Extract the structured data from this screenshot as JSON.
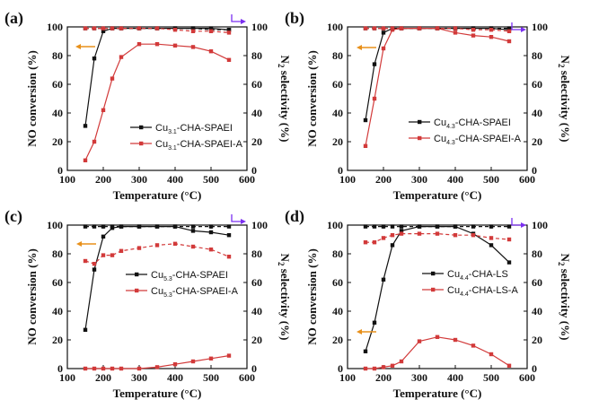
{
  "colors": {
    "black": "#111111",
    "red": "#d23a3a",
    "orange": "#e8901a",
    "purple": "#7b2ff0"
  },
  "chart_data": [
    {
      "panel": "(a)",
      "type": "line",
      "xlabel": "Temperature (°C)",
      "ylabel": "NO conversion (%)",
      "y2label": "N2 selectivity (%)",
      "xlim": [
        100,
        600
      ],
      "ylim": [
        0,
        100
      ],
      "xticks": [
        100,
        200,
        300,
        400,
        500,
        600
      ],
      "yticks": [
        0,
        20,
        40,
        60,
        80,
        100
      ],
      "legend_position": "right",
      "series": [
        {
          "name": "Cu3.1-CHA-SPAEI",
          "axis": "left",
          "color": "#111111",
          "style": "solid",
          "x": [
            150,
            175,
            200,
            225,
            250,
            300,
            350,
            400,
            450,
            500,
            550
          ],
          "y": [
            31,
            78,
            97,
            99,
            99,
            99,
            99,
            99,
            99,
            99,
            98
          ]
        },
        {
          "name": "Cu3.1-CHA-SPAEI-A",
          "axis": "left",
          "color": "#d23a3a",
          "style": "solid",
          "x": [
            150,
            175,
            200,
            225,
            250,
            300,
            350,
            400,
            450,
            500,
            550
          ],
          "y": [
            7,
            20,
            42,
            64,
            79,
            88,
            88,
            87,
            86,
            83,
            77
          ]
        },
        {
          "name": "",
          "axis": "right",
          "color": "#111111",
          "style": "dashed",
          "x": [
            150,
            175,
            200,
            225,
            250,
            300,
            350,
            400,
            450,
            500,
            550
          ],
          "y": [
            99,
            99,
            99,
            99,
            99,
            99,
            99,
            99,
            99,
            98,
            98
          ]
        },
        {
          "name": "",
          "axis": "right",
          "color": "#d23a3a",
          "style": "dashed",
          "x": [
            150,
            175,
            200,
            225,
            250,
            300,
            350,
            400,
            450,
            500,
            550
          ],
          "y": [
            99,
            99,
            99,
            99,
            99,
            99,
            99,
            98,
            97,
            97,
            96
          ]
        }
      ],
      "legend": [
        {
          "base": "Cu",
          "sub": "3.1",
          "suffix": "-CHA-SPAEI",
          "color": "#111111"
        },
        {
          "base": "Cu",
          "sub": "3.1",
          "suffix": "-CHA-SPAEI-A",
          "color": "#d23a3a"
        }
      ]
    },
    {
      "panel": "(b)",
      "type": "line",
      "xlabel": "Temperature (°C)",
      "ylabel": "NO conversion (%)",
      "y2label": "N2 selectivity (%)",
      "xlim": [
        100,
        600
      ],
      "ylim": [
        0,
        100
      ],
      "xticks": [
        100,
        200,
        300,
        400,
        500,
        600
      ],
      "yticks": [
        0,
        20,
        40,
        60,
        80,
        100
      ],
      "legend_position": "bottom-right",
      "series": [
        {
          "name": "Cu4.3-CHA-SPAEI",
          "axis": "left",
          "color": "#111111",
          "style": "solid",
          "x": [
            150,
            175,
            200,
            225,
            250,
            300,
            350,
            400,
            450,
            500,
            550
          ],
          "y": [
            35,
            74,
            96,
            99,
            99,
            99,
            99,
            99,
            99,
            99,
            98
          ]
        },
        {
          "name": "Cu4.3-CHA-SPAEI-A",
          "axis": "left",
          "color": "#d23a3a",
          "style": "solid",
          "x": [
            150,
            175,
            200,
            225,
            250,
            300,
            350,
            400,
            450,
            500,
            550
          ],
          "y": [
            17,
            50,
            85,
            98,
            99,
            99,
            99,
            96,
            94,
            93,
            90
          ]
        },
        {
          "name": "",
          "axis": "right",
          "color": "#111111",
          "style": "dashed",
          "x": [
            150,
            175,
            200,
            225,
            250,
            300,
            350,
            400,
            450,
            500,
            550
          ],
          "y": [
            99,
            99,
            99,
            99,
            99,
            99,
            99,
            99,
            99,
            99,
            99
          ]
        },
        {
          "name": "",
          "axis": "right",
          "color": "#d23a3a",
          "style": "dashed",
          "x": [
            150,
            175,
            200,
            225,
            250,
            300,
            350,
            400,
            450,
            500,
            550
          ],
          "y": [
            99,
            99,
            99,
            99,
            99,
            99,
            99,
            99,
            98,
            98,
            97
          ]
        }
      ],
      "legend": [
        {
          "base": "Cu",
          "sub": "4.3",
          "suffix": "-CHA-SPAEI",
          "color": "#111111"
        },
        {
          "base": "Cu",
          "sub": "4.3",
          "suffix": "-CHA-SPAEI-A",
          "color": "#d23a3a"
        }
      ]
    },
    {
      "panel": "(c)",
      "type": "line",
      "xlabel": "Temperature (°C)",
      "ylabel": "NO conversion (%)",
      "y2label": "N2 selectivity (%)",
      "xlim": [
        100,
        600
      ],
      "ylim": [
        0,
        100
      ],
      "xticks": [
        100,
        200,
        300,
        400,
        500,
        600
      ],
      "yticks": [
        0,
        20,
        40,
        60,
        80,
        100
      ],
      "legend_position": "center",
      "series": [
        {
          "name": "Cu5.3-CHA-SPAEI",
          "axis": "left",
          "color": "#111111",
          "style": "solid",
          "x": [
            150,
            175,
            200,
            225,
            250,
            300,
            350,
            400,
            450,
            500,
            550
          ],
          "y": [
            27,
            69,
            92,
            98,
            99,
            99,
            99,
            99,
            96,
            95,
            93
          ]
        },
        {
          "name": "Cu5.3-CHA-SPAEI-A",
          "axis": "left",
          "color": "#d23a3a",
          "style": "solid",
          "x": [
            150,
            175,
            200,
            225,
            250,
            300,
            350,
            400,
            450,
            500,
            550
          ],
          "y": [
            0,
            0,
            0,
            0,
            0,
            0,
            1,
            3,
            5,
            7,
            9
          ]
        },
        {
          "name": "",
          "axis": "right",
          "color": "#111111",
          "style": "dashed",
          "x": [
            150,
            175,
            200,
            225,
            250,
            300,
            350,
            400,
            450,
            500,
            550
          ],
          "y": [
            99,
            99,
            99,
            99,
            99,
            99,
            99,
            99,
            99,
            99,
            99
          ]
        },
        {
          "name": "",
          "axis": "right",
          "color": "#d23a3a",
          "style": "dashed",
          "x": [
            150,
            175,
            200,
            225,
            250,
            300,
            350,
            400,
            450,
            500,
            550
          ],
          "y": [
            75,
            73,
            79,
            79,
            82,
            84,
            86,
            87,
            85,
            83,
            78
          ]
        }
      ],
      "legend": [
        {
          "base": "Cu",
          "sub": "5.3",
          "suffix": "-CHA-SPAEI",
          "color": "#111111"
        },
        {
          "base": "Cu",
          "sub": "5.3",
          "suffix": "-CHA-SPAEI-A",
          "color": "#d23a3a"
        }
      ]
    },
    {
      "panel": "(d)",
      "type": "line",
      "xlabel": "Temperature (°C)",
      "ylabel": "NO conversion (%)",
      "y2label": "N2 selectivity (%)",
      "xlim": [
        100,
        600
      ],
      "ylim": [
        0,
        100
      ],
      "xticks": [
        100,
        200,
        300,
        400,
        500,
        600
      ],
      "yticks": [
        0,
        20,
        40,
        60,
        80,
        100
      ],
      "legend_position": "right",
      "series": [
        {
          "name": "Cu4.4-CHA-LS",
          "axis": "left",
          "color": "#111111",
          "style": "solid",
          "x": [
            150,
            175,
            200,
            225,
            250,
            300,
            350,
            400,
            450,
            500,
            550
          ],
          "y": [
            12,
            32,
            62,
            86,
            96,
            99,
            99,
            99,
            94,
            86,
            74
          ]
        },
        {
          "name": "Cu4.4-CHA-LS-A",
          "axis": "left",
          "color": "#d23a3a",
          "style": "solid",
          "x": [
            150,
            175,
            200,
            225,
            250,
            300,
            350,
            400,
            450,
            500,
            550
          ],
          "y": [
            0,
            0,
            1,
            2,
            5,
            19,
            22,
            20,
            16,
            10,
            2
          ]
        },
        {
          "name": "",
          "axis": "right",
          "color": "#111111",
          "style": "dashed",
          "x": [
            150,
            175,
            200,
            225,
            250,
            300,
            350,
            400,
            450,
            500,
            550
          ],
          "y": [
            99,
            99,
            99,
            99,
            99,
            99,
            99,
            99,
            99,
            99,
            99
          ]
        },
        {
          "name": "",
          "axis": "right",
          "color": "#d23a3a",
          "style": "dashed",
          "x": [
            150,
            175,
            200,
            225,
            250,
            300,
            350,
            400,
            450,
            500,
            550
          ],
          "y": [
            88,
            88,
            91,
            93,
            94,
            94,
            94,
            93,
            93,
            91,
            90
          ]
        }
      ],
      "legend": [
        {
          "base": "Cu",
          "sub": "4.4",
          "suffix": "-CHA-LS",
          "color": "#111111"
        },
        {
          "base": "Cu",
          "sub": "4.4",
          "suffix": "-CHA-LS-A",
          "color": "#d23a3a"
        }
      ]
    }
  ]
}
